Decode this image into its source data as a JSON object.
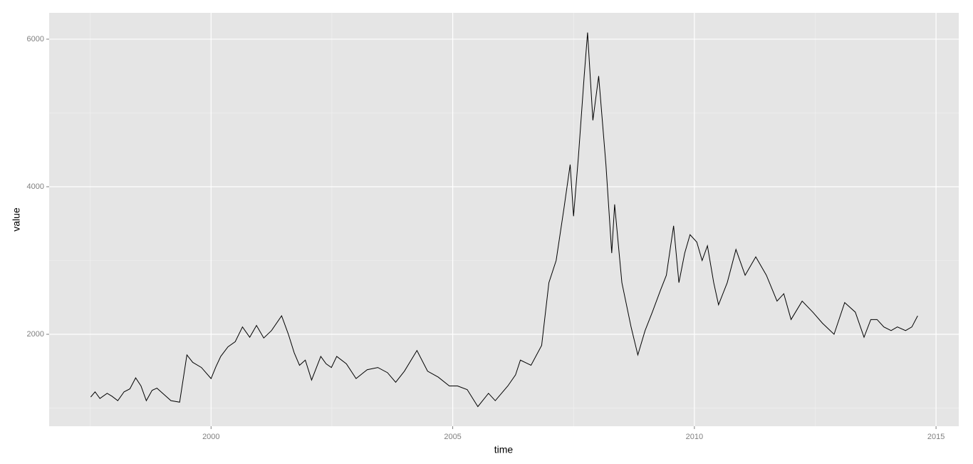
{
  "chart_data": {
    "type": "line",
    "x_label": "time",
    "y_label": "value",
    "x": [
      1997.51,
      1997.6,
      1997.7,
      1997.85,
      1997.95,
      1998.07,
      1998.2,
      1998.32,
      1998.44,
      1998.55,
      1998.66,
      1998.78,
      1998.88,
      1999.0,
      1999.17,
      1999.35,
      1999.5,
      1999.62,
      1999.8,
      2000.0,
      2000.1,
      2000.2,
      2000.35,
      2000.5,
      2000.65,
      2000.8,
      2000.94,
      2001.09,
      2001.25,
      2001.46,
      2001.6,
      2001.72,
      2001.83,
      2001.95,
      2002.08,
      2002.27,
      2002.38,
      2002.49,
      2002.6,
      2002.8,
      2003.0,
      2003.23,
      2003.45,
      2003.65,
      2003.82,
      2004.0,
      2004.26,
      2004.48,
      2004.7,
      2004.93,
      2005.1,
      2005.3,
      2005.52,
      2005.74,
      2005.88,
      2006.14,
      2006.3,
      2006.4,
      2006.62,
      2006.84,
      2006.99,
      2007.14,
      2007.3,
      2007.43,
      2007.5,
      2007.6,
      2007.72,
      2007.79,
      2007.9,
      2008.02,
      2008.17,
      2008.29,
      2008.35,
      2008.5,
      2008.69,
      2008.83,
      2008.98,
      2009.13,
      2009.3,
      2009.42,
      2009.57,
      2009.68,
      2009.8,
      2009.91,
      2010.05,
      2010.16,
      2010.27,
      2010.4,
      2010.5,
      2010.68,
      2010.86,
      2011.05,
      2011.27,
      2011.49,
      2011.71,
      2011.85,
      2012.0,
      2012.23,
      2012.45,
      2012.65,
      2012.89,
      2013.11,
      2013.33,
      2013.51,
      2013.65,
      2013.78,
      2013.92,
      2014.07,
      2014.2,
      2014.37,
      2014.5,
      2014.62
    ],
    "values": [
      1150,
      1220,
      1130,
      1200,
      1160,
      1100,
      1220,
      1260,
      1410,
      1300,
      1100,
      1240,
      1270,
      1200,
      1100,
      1080,
      1720,
      1620,
      1550,
      1400,
      1560,
      1700,
      1830,
      1900,
      2100,
      1960,
      2120,
      1950,
      2050,
      2250,
      2000,
      1750,
      1580,
      1650,
      1380,
      1700,
      1600,
      1550,
      1700,
      1600,
      1400,
      1520,
      1550,
      1480,
      1350,
      1500,
      1780,
      1500,
      1420,
      1300,
      1300,
      1250,
      1020,
      1200,
      1100,
      1300,
      1450,
      1650,
      1580,
      1850,
      2700,
      3000,
      3700,
      4300,
      3600,
      4400,
      5500,
      6090,
      4900,
      5500,
      4300,
      3100,
      3760,
      2700,
      2100,
      1720,
      2050,
      2300,
      2600,
      2800,
      3470,
      2700,
      3100,
      3350,
      3250,
      3000,
      3200,
      2700,
      2400,
      2700,
      3150,
      2800,
      3050,
      2800,
      2450,
      2550,
      2200,
      2450,
      2300,
      2150,
      2000,
      2430,
      2300,
      1960,
      2200,
      2200,
      2100,
      2050,
      2100,
      2050,
      2100,
      2250
    ],
    "color": "#000000",
    "xlim": [
      1996.65,
      2015.47
    ],
    "ylim": [
      754,
      6357
    ],
    "xticks": [
      2000,
      2005,
      2010,
      2015
    ],
    "yticks": [
      2000,
      4000,
      6000
    ],
    "x_minor_ticks": [
      1997.5,
      2002.5,
      2007.5,
      2012.5
    ],
    "y_minor_ticks": [
      1000,
      3000,
      5000
    ],
    "grid": true
  }
}
